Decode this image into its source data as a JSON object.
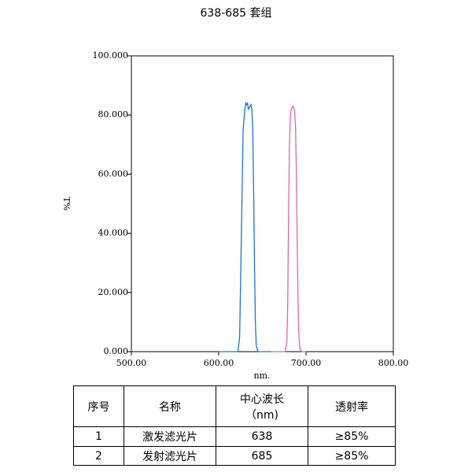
{
  "chart_data": {
    "type": "line",
    "title": "638-685 套组",
    "x_label": "nm.",
    "y_label": "T%",
    "xlim": [
      500,
      800
    ],
    "ylim": [
      0,
      100
    ],
    "xticks": [
      {
        "value": 500,
        "label": "500.00"
      },
      {
        "value": 600,
        "label": "600.00"
      },
      {
        "value": 700,
        "label": "700.00"
      },
      {
        "value": 800,
        "label": "800.00"
      }
    ],
    "yticks": [
      {
        "value": 0,
        "label": "0.000"
      },
      {
        "value": 20,
        "label": "20.000"
      },
      {
        "value": 40,
        "label": "40.000"
      },
      {
        "value": 60,
        "label": "60.000"
      },
      {
        "value": 80,
        "label": "80.000"
      },
      {
        "value": 100,
        "label": "100.000"
      }
    ],
    "series": [
      {
        "color": "#1a73d9",
        "x": [
          600,
          622,
          624,
          626,
          628,
          630,
          631,
          632,
          633,
          634,
          636,
          637,
          638,
          639,
          640,
          641,
          642,
          643,
          645,
          660
        ],
        "values": [
          0,
          0,
          5,
          40,
          75,
          82,
          84,
          83.5,
          84,
          82,
          83,
          83.5,
          82,
          75,
          55,
          30,
          10,
          2,
          0,
          0
        ]
      },
      {
        "color": "#e066a8",
        "x": [
          660,
          676,
          678,
          679,
          680,
          681,
          682,
          683,
          685,
          686,
          687,
          688,
          689,
          690,
          691,
          692,
          693,
          695,
          700
        ],
        "values": [
          0,
          0,
          3,
          15,
          45,
          70,
          79,
          82,
          83,
          82.5,
          81,
          76,
          60,
          35,
          15,
          5,
          1,
          0,
          0
        ]
      }
    ]
  },
  "table": {
    "headers": [
      "序号",
      "名称",
      [
        "中心波长",
        "（nm)"
      ],
      "透射率"
    ],
    "rows": [
      [
        "1",
        "激发滤光片",
        "638",
        "≥85%"
      ],
      [
        "2",
        "发射滤光片",
        "685",
        "≥85%"
      ]
    ]
  }
}
